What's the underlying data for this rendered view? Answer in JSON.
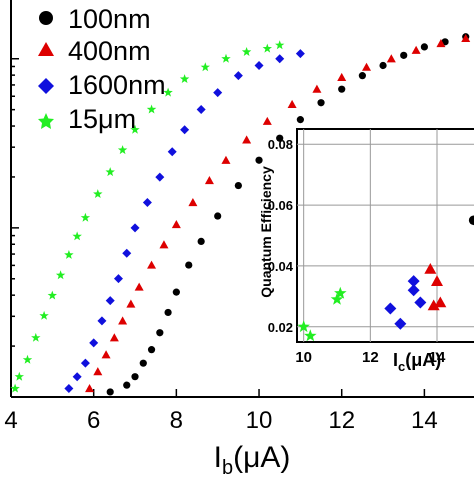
{
  "chart_data": [
    {
      "type": "scatter",
      "xlabel_main": "I",
      "xlabel_sub": "b",
      "xlabel_unit": "(μA)",
      "ylabel": "",
      "xlim": [
        4,
        15.2
      ],
      "ylim_log10": [
        0.0,
        2.3
      ],
      "y_scale": "log",
      "x_ticks": [
        "4",
        "6",
        "8",
        "10",
        "12",
        "14"
      ],
      "legend_position": "top-left",
      "series": [
        {
          "name": "100nm",
          "color": "#000000",
          "marker": "circle",
          "x": [
            6.4,
            6.8,
            7.0,
            7.2,
            7.4,
            7.6,
            7.8,
            8.0,
            8.3,
            8.6,
            9.0,
            9.5,
            10.0,
            10.5,
            11.0,
            11.5,
            12.0,
            12.5,
            13.0,
            13.5,
            14.0,
            14.5,
            15.0
          ],
          "y": [
            0.03,
            0.07,
            0.12,
            0.2,
            0.28,
            0.38,
            0.5,
            0.62,
            0.78,
            0.92,
            1.07,
            1.25,
            1.4,
            1.53,
            1.64,
            1.74,
            1.82,
            1.9,
            1.96,
            2.02,
            2.07,
            2.1,
            2.13
          ]
        },
        {
          "name": "400nm",
          "color": "#dd0000",
          "marker": "triangle",
          "x": [
            5.9,
            6.1,
            6.3,
            6.5,
            6.7,
            6.9,
            7.1,
            7.4,
            7.7,
            8.0,
            8.4,
            8.8,
            9.2,
            9.7,
            10.2,
            10.8,
            11.4,
            12.0,
            12.6,
            13.2,
            13.8,
            14.4,
            15.0
          ],
          "y": [
            0.05,
            0.15,
            0.25,
            0.35,
            0.45,
            0.55,
            0.65,
            0.78,
            0.9,
            1.02,
            1.15,
            1.28,
            1.4,
            1.52,
            1.63,
            1.73,
            1.82,
            1.89,
            1.95,
            2.0,
            2.05,
            2.09,
            2.12
          ]
        },
        {
          "name": "1600nm",
          "color": "#1010dd",
          "marker": "diamond",
          "x": [
            5.4,
            5.6,
            5.8,
            6.0,
            6.2,
            6.4,
            6.6,
            6.8,
            7.0,
            7.3,
            7.6,
            7.9,
            8.2,
            8.6,
            9.0,
            9.5,
            10.0,
            10.5,
            11.0
          ],
          "y": [
            0.05,
            0.12,
            0.2,
            0.32,
            0.45,
            0.57,
            0.7,
            0.85,
            1.0,
            1.15,
            1.3,
            1.45,
            1.58,
            1.7,
            1.8,
            1.9,
            1.96,
            2.0,
            2.03
          ]
        },
        {
          "name": "15μm",
          "color": "#22ee22",
          "marker": "star",
          "x": [
            4.1,
            4.2,
            4.4,
            4.6,
            4.8,
            5.0,
            5.2,
            5.4,
            5.6,
            5.8,
            6.1,
            6.4,
            6.7,
            7.0,
            7.4,
            7.8,
            8.2,
            8.7,
            9.2,
            9.7,
            10.2,
            10.5
          ],
          "y": [
            0.05,
            0.12,
            0.22,
            0.35,
            0.48,
            0.6,
            0.72,
            0.84,
            0.95,
            1.06,
            1.2,
            1.33,
            1.46,
            1.58,
            1.7,
            1.8,
            1.88,
            1.95,
            2.0,
            2.04,
            2.06,
            2.08
          ]
        }
      ]
    },
    {
      "type": "scatter",
      "ylabel": "Quantum Efficiency",
      "xlabel_main": "I",
      "xlabel_sub": "c",
      "xlabel_unit": "(μA)",
      "xlim": [
        9.8,
        15.2
      ],
      "ylim": [
        0.015,
        0.085
      ],
      "grid": true,
      "x_ticks": [
        "10",
        "12",
        "14"
      ],
      "y_ticks": [
        "0.02",
        "0.04",
        "0.06",
        "0.08"
      ],
      "series": [
        {
          "name": "100nm",
          "color": "#000000",
          "marker": "circle",
          "x": [
            15.1
          ],
          "y": [
            0.055
          ]
        },
        {
          "name": "400nm",
          "color": "#dd0000",
          "marker": "triangle",
          "x": [
            13.8,
            14.0,
            13.9,
            14.1
          ],
          "y": [
            0.039,
            0.035,
            0.027,
            0.028
          ]
        },
        {
          "name": "1600nm",
          "color": "#1010dd",
          "marker": "diamond",
          "x": [
            12.6,
            12.9,
            13.3,
            13.3,
            13.5
          ],
          "y": [
            0.026,
            0.021,
            0.035,
            0.032,
            0.028
          ]
        },
        {
          "name": "15μm",
          "color": "#22ee22",
          "marker": "star",
          "x": [
            10.0,
            10.2,
            11.1,
            11.0
          ],
          "y": [
            0.02,
            0.017,
            0.031,
            0.029
          ]
        }
      ]
    }
  ]
}
